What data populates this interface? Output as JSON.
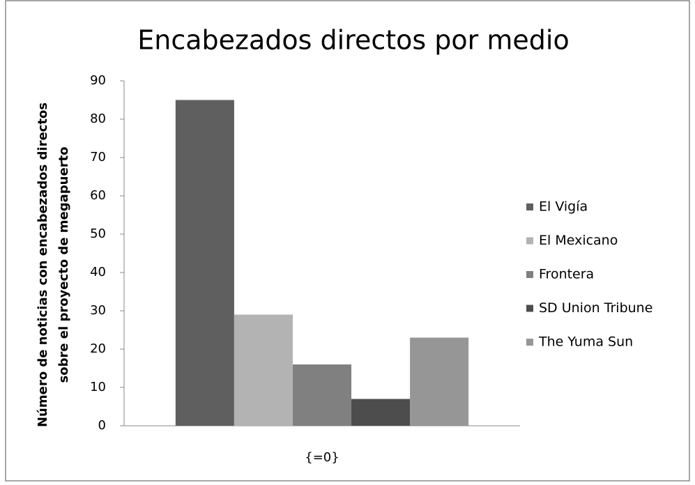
{
  "chart_data": {
    "type": "bar",
    "title": "Encabezados directos por medio",
    "y_label": [
      "Número de noticias con encabezados directos",
      "sobre el proyecto de megapuerto"
    ],
    "categories": [
      "{=0}"
    ],
    "series": [
      {
        "name": "El Vigía",
        "color": "#5f5f5f",
        "values": [
          85
        ]
      },
      {
        "name": "El Mexicano",
        "color": "#b3b3b3",
        "values": [
          29
        ]
      },
      {
        "name": "Frontera",
        "color": "#808080",
        "values": [
          16
        ]
      },
      {
        "name": "SD Union Tribune",
        "color": "#4d4d4d",
        "values": [
          7
        ]
      },
      {
        "name": "The Yuma Sun",
        "color": "#969696",
        "values": [
          23
        ]
      }
    ],
    "ylim": [
      0,
      90
    ],
    "yticks": [
      0,
      10,
      20,
      30,
      40,
      50,
      60,
      70,
      80,
      90
    ],
    "grid": false,
    "legend": "right"
  }
}
